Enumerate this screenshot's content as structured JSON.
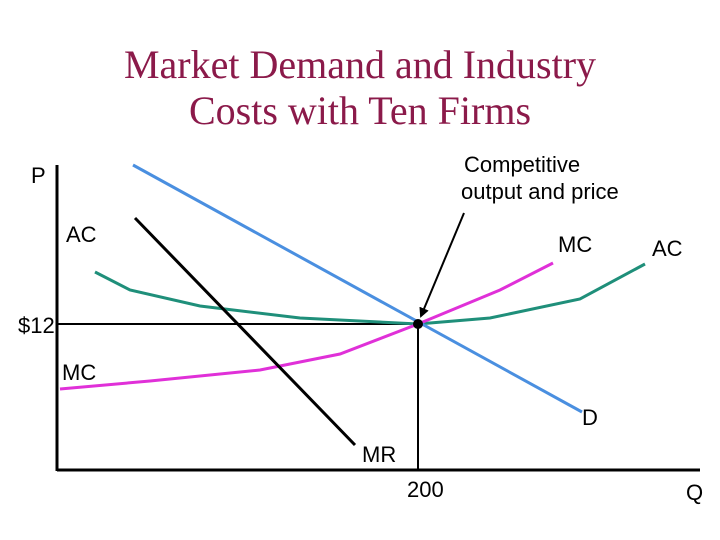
{
  "title_line1": "Market Demand and Industry",
  "title_line2": "Costs with Ten Firms",
  "colors": {
    "title": "#8b1a4a",
    "demand": "#4a8fe0",
    "marginal_revenue": "#000000",
    "average_cost": "#1f8f7a",
    "marginal_cost": "#e030d8",
    "axis": "#000000"
  },
  "chart_data": {
    "type": "line",
    "ylabel": "P",
    "xlabel": "Q",
    "price_tick": "$12",
    "quantity_tick": "200",
    "price_value": 12,
    "quantity_value": 200,
    "annotation": "Competitive output and price",
    "annotation_lines": [
      "Competitive",
      "output and price"
    ],
    "curve_labels": {
      "ac_left": "AC",
      "ac_right": "AC",
      "mc_left": "MC",
      "mc_right": "MC",
      "demand": "D",
      "mr": "MR"
    },
    "series": [
      {
        "name": "D"
      },
      {
        "name": "MR"
      },
      {
        "name": "AC"
      },
      {
        "name": "MC"
      }
    ]
  }
}
